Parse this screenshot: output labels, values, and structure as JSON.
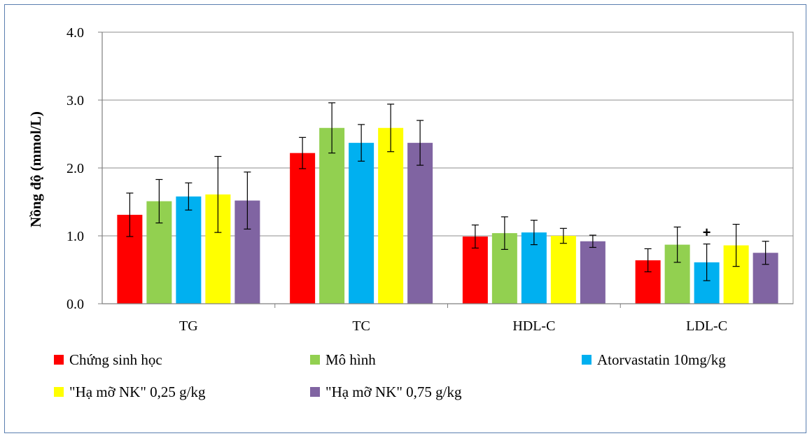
{
  "chart_data": {
    "type": "bar",
    "title": "",
    "xlabel": "",
    "ylabel": "Nồng độ (mmol/L)",
    "ylim": [
      0,
      4
    ],
    "yticks": [
      "0.0",
      "1.0",
      "2.0",
      "3.0",
      "4.0"
    ],
    "grid": true,
    "legend_position": "bottom",
    "categories": [
      "TG",
      "TC",
      "HDL-C",
      "LDL-C"
    ],
    "series": [
      {
        "name": "Chứng sinh học",
        "color": "#ff0000",
        "values": [
          1.31,
          2.22,
          0.99,
          0.64
        ],
        "errors": [
          0.32,
          0.23,
          0.17,
          0.17
        ]
      },
      {
        "name": "Mô hình",
        "color": "#92d050",
        "values": [
          1.51,
          2.59,
          1.04,
          0.87
        ],
        "errors": [
          0.32,
          0.37,
          0.24,
          0.26
        ]
      },
      {
        "name": "Atorvastatin 10mg/kg",
        "color": "#00b0f0",
        "values": [
          1.58,
          2.37,
          1.05,
          0.61
        ],
        "errors": [
          0.2,
          0.27,
          0.18,
          0.27
        ]
      },
      {
        "name": "\"Hạ mỡ NK\"  0,25 g/kg",
        "color": "#ffff00",
        "values": [
          1.61,
          2.59,
          1.0,
          0.86
        ],
        "errors": [
          0.56,
          0.35,
          0.11,
          0.31
        ]
      },
      {
        "name": "\"Hạ mỡ NK\"  0,75 g/kg",
        "color": "#8064a2",
        "values": [
          1.52,
          2.37,
          0.92,
          0.75
        ],
        "errors": [
          0.42,
          0.33,
          0.09,
          0.17
        ]
      }
    ],
    "annotations": [
      {
        "text": "+",
        "category": "LDL-C",
        "series": "Atorvastatin 10mg/kg"
      }
    ]
  }
}
